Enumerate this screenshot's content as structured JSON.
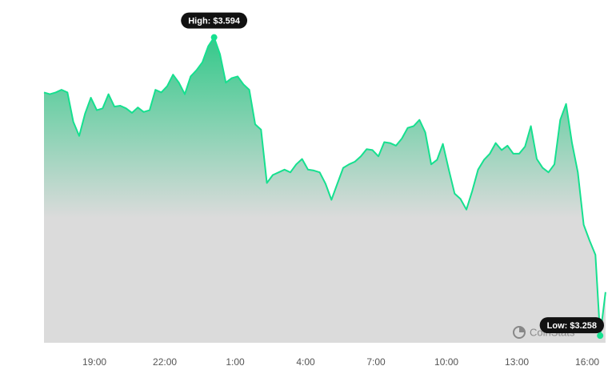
{
  "chart_data": {
    "type": "area",
    "x": [
      16.85,
      17.1,
      17.35,
      17.6,
      17.85,
      18.1,
      18.35,
      18.6,
      18.85,
      19.1,
      19.35,
      19.6,
      19.85,
      20.1,
      20.35,
      20.6,
      20.85,
      21.1,
      21.35,
      21.6,
      21.85,
      22.1,
      22.35,
      22.6,
      22.85,
      23.1,
      23.35,
      23.6,
      23.85,
      24.1,
      24.35,
      24.6,
      24.85,
      25.1,
      25.35,
      25.6,
      25.85,
      26.1,
      26.35,
      26.6,
      26.85,
      27.1,
      27.35,
      27.6,
      27.85,
      28.1,
      28.35,
      28.6,
      28.85,
      29.1,
      29.35,
      29.6,
      29.85,
      30.1,
      30.35,
      30.6,
      30.85,
      31.1,
      31.35,
      31.6,
      31.85,
      32.1,
      32.35,
      32.6,
      32.85,
      33.1,
      33.35,
      33.6,
      33.85,
      34.1,
      34.35,
      34.6,
      34.85,
      35.1,
      35.35,
      35.6,
      35.85,
      36.1,
      36.35,
      36.6,
      36.85,
      37.1,
      37.35,
      37.6,
      37.85,
      38.1,
      38.35,
      38.6,
      38.85,
      39.1,
      39.35,
      39.6,
      39.85,
      40.1,
      40.35,
      40.55,
      40.78
    ],
    "values": [
      3.532,
      3.53,
      3.532,
      3.535,
      3.532,
      3.499,
      3.483,
      3.508,
      3.526,
      3.512,
      3.514,
      3.53,
      3.516,
      3.517,
      3.514,
      3.509,
      3.515,
      3.51,
      3.512,
      3.535,
      3.532,
      3.539,
      3.552,
      3.543,
      3.53,
      3.55,
      3.557,
      3.566,
      3.584,
      3.594,
      3.575,
      3.543,
      3.548,
      3.55,
      3.541,
      3.535,
      3.496,
      3.49,
      3.43,
      3.439,
      3.442,
      3.445,
      3.442,
      3.451,
      3.457,
      3.445,
      3.444,
      3.442,
      3.429,
      3.411,
      3.429,
      3.447,
      3.451,
      3.454,
      3.46,
      3.468,
      3.467,
      3.46,
      3.476,
      3.475,
      3.472,
      3.48,
      3.492,
      3.494,
      3.501,
      3.487,
      3.451,
      3.456,
      3.474,
      3.445,
      3.418,
      3.412,
      3.4,
      3.421,
      3.445,
      3.456,
      3.463,
      3.475,
      3.467,
      3.472,
      3.463,
      3.463,
      3.471,
      3.494,
      3.457,
      3.447,
      3.442,
      3.451,
      3.501,
      3.519,
      3.475,
      3.442,
      3.383,
      3.365,
      3.349,
      3.258,
      3.307
    ],
    "color": "#16e08f",
    "xlim": [
      16.8,
      40.8
    ],
    "ylim": [
      3.25,
      3.6
    ],
    "xticks": [
      {
        "value": 19,
        "label": "19:00"
      },
      {
        "value": 22,
        "label": "22:00"
      },
      {
        "value": 25,
        "label": "1:00"
      },
      {
        "value": 28,
        "label": "4:00"
      },
      {
        "value": 31,
        "label": "7:00"
      },
      {
        "value": 34,
        "label": "10:00"
      },
      {
        "value": 37,
        "label": "13:00"
      },
      {
        "value": 40,
        "label": "16:00"
      }
    ],
    "annotations": [
      {
        "text": "High: $3.594",
        "index": 29
      },
      {
        "text": "Low: $3.258",
        "index": 95
      }
    ],
    "watermark": "CoinStats"
  }
}
